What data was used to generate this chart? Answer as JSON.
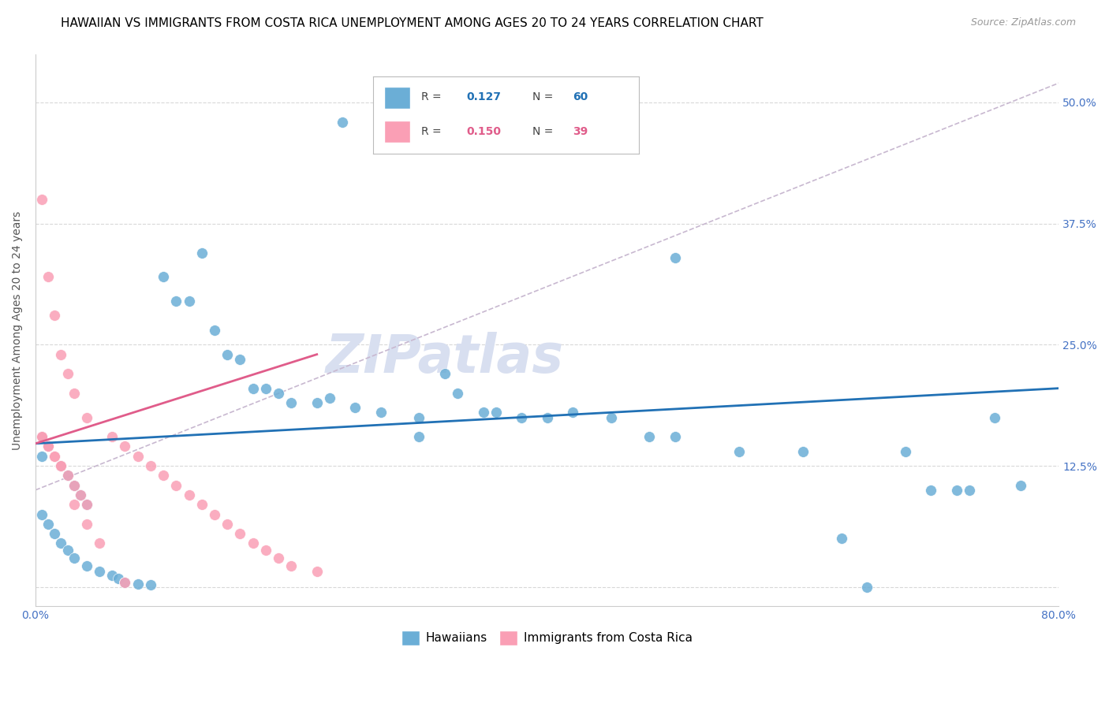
{
  "title": "HAWAIIAN VS IMMIGRANTS FROM COSTA RICA UNEMPLOYMENT AMONG AGES 20 TO 24 YEARS CORRELATION CHART",
  "source": "Source: ZipAtlas.com",
  "ylabel": "Unemployment Among Ages 20 to 24 years",
  "xlim": [
    0.0,
    0.8
  ],
  "ylim": [
    -0.02,
    0.55
  ],
  "yticks": [
    0.0,
    0.125,
    0.25,
    0.375,
    0.5
  ],
  "ytick_labels": [
    "",
    "12.5%",
    "25.0%",
    "37.5%",
    "50.0%"
  ],
  "xticks": [
    0.0,
    0.16,
    0.32,
    0.48,
    0.64,
    0.8
  ],
  "xtick_labels": [
    "0.0%",
    "",
    "",
    "",
    "",
    "80.0%"
  ],
  "hawaiians_x": [
    0.24,
    0.005,
    0.01,
    0.005,
    0.02,
    0.025,
    0.03,
    0.035,
    0.04,
    0.005,
    0.01,
    0.015,
    0.02,
    0.025,
    0.03,
    0.04,
    0.05,
    0.06,
    0.065,
    0.07,
    0.08,
    0.09,
    0.1,
    0.11,
    0.12,
    0.13,
    0.14,
    0.15,
    0.16,
    0.17,
    0.18,
    0.19,
    0.2,
    0.22,
    0.23,
    0.25,
    0.27,
    0.3,
    0.32,
    0.33,
    0.35,
    0.36,
    0.38,
    0.4,
    0.42,
    0.45,
    0.48,
    0.5,
    0.55,
    0.6,
    0.63,
    0.65,
    0.68,
    0.7,
    0.72,
    0.73,
    0.75,
    0.77,
    0.5,
    0.3
  ],
  "hawaiians_y": [
    0.48,
    0.155,
    0.145,
    0.135,
    0.125,
    0.115,
    0.105,
    0.095,
    0.085,
    0.075,
    0.065,
    0.055,
    0.045,
    0.038,
    0.03,
    0.022,
    0.016,
    0.012,
    0.009,
    0.005,
    0.003,
    0.002,
    0.32,
    0.295,
    0.295,
    0.345,
    0.265,
    0.24,
    0.235,
    0.205,
    0.205,
    0.2,
    0.19,
    0.19,
    0.195,
    0.185,
    0.18,
    0.175,
    0.22,
    0.2,
    0.18,
    0.18,
    0.175,
    0.175,
    0.18,
    0.175,
    0.155,
    0.155,
    0.14,
    0.14,
    0.05,
    0.0,
    0.14,
    0.1,
    0.1,
    0.1,
    0.175,
    0.105,
    0.34,
    0.155
  ],
  "costa_rica_x": [
    0.005,
    0.01,
    0.015,
    0.02,
    0.025,
    0.03,
    0.035,
    0.04,
    0.005,
    0.01,
    0.015,
    0.02,
    0.025,
    0.03,
    0.04,
    0.06,
    0.07,
    0.08,
    0.09,
    0.1,
    0.11,
    0.12,
    0.13,
    0.14,
    0.15,
    0.16,
    0.17,
    0.18,
    0.19,
    0.2,
    0.22,
    0.005,
    0.01,
    0.015,
    0.02,
    0.03,
    0.04,
    0.05,
    0.07
  ],
  "costa_rica_y": [
    0.155,
    0.145,
    0.135,
    0.125,
    0.115,
    0.105,
    0.095,
    0.085,
    0.4,
    0.32,
    0.28,
    0.24,
    0.22,
    0.2,
    0.175,
    0.155,
    0.145,
    0.135,
    0.125,
    0.115,
    0.105,
    0.095,
    0.085,
    0.075,
    0.065,
    0.055,
    0.045,
    0.038,
    0.03,
    0.022,
    0.016,
    0.155,
    0.145,
    0.135,
    0.125,
    0.085,
    0.065,
    0.045,
    0.005
  ],
  "blue_line_x": [
    0.0,
    0.8
  ],
  "blue_line_y": [
    0.148,
    0.205
  ],
  "pink_line_x": [
    0.0,
    0.22
  ],
  "pink_line_y": [
    0.148,
    0.24
  ],
  "dashed_line_x": [
    0.0,
    0.8
  ],
  "dashed_line_y": [
    0.1,
    0.52
  ],
  "blue_color": "#6baed6",
  "pink_color": "#fa9fb5",
  "blue_line_color": "#2171b5",
  "pink_line_color": "#e05c8a",
  "dashed_line_color": "#c8b8d0",
  "watermark": "ZIPatlas",
  "watermark_color": "#d8dff0",
  "right_axis_color": "#4472c4",
  "title_fontsize": 11,
  "axis_label_fontsize": 10,
  "tick_fontsize": 10,
  "legend_blue_R": "0.127",
  "legend_blue_N": "60",
  "legend_pink_R": "0.150",
  "legend_pink_N": "39"
}
